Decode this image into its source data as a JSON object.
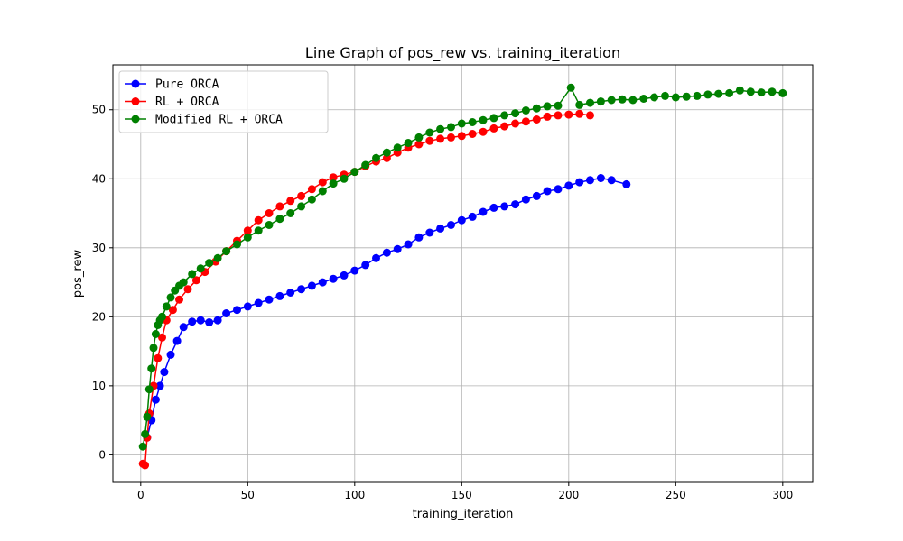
{
  "chart_data": {
    "type": "line",
    "title": "Line Graph of pos_rew vs. training_iteration",
    "xlabel": "training_iteration",
    "ylabel": "pos_rew",
    "xlim": [
      -13,
      314
    ],
    "ylim": [
      -4,
      56.5
    ],
    "xticks": [
      0,
      50,
      100,
      150,
      200,
      250,
      300
    ],
    "yticks": [
      0,
      10,
      20,
      30,
      40,
      50
    ],
    "grid": true,
    "legend_position": "top-left",
    "colors": {
      "Pure ORCA": "#0000ff",
      "RL + ORCA": "#ff0000",
      "Modified RL + ORCA": "#008000"
    },
    "series": [
      {
        "name": "Pure ORCA",
        "color": "#0000ff",
        "x": [
          3,
          5,
          7,
          9,
          11,
          14,
          17,
          20,
          24,
          28,
          32,
          36,
          40,
          45,
          50,
          55,
          60,
          65,
          70,
          75,
          80,
          85,
          90,
          95,
          100,
          105,
          110,
          115,
          120,
          125,
          130,
          135,
          140,
          145,
          150,
          155,
          160,
          165,
          170,
          175,
          180,
          185,
          190,
          195,
          200,
          205,
          210,
          215,
          220,
          227
        ],
        "y": [
          2.5,
          5,
          8,
          10,
          12,
          14.5,
          16.5,
          18.5,
          19.3,
          19.5,
          19.2,
          19.5,
          20.5,
          21,
          21.5,
          22,
          22.5,
          23,
          23.5,
          24,
          24.5,
          25,
          25.5,
          26,
          26.7,
          27.5,
          28.5,
          29.3,
          29.8,
          30.5,
          31.5,
          32.2,
          32.8,
          33.3,
          34,
          34.5,
          35.2,
          35.8,
          36,
          36.3,
          37,
          37.5,
          38.2,
          38.5,
          39,
          39.5,
          39.8,
          40.1,
          39.8,
          39.2
        ]
      },
      {
        "name": "RL + ORCA",
        "color": "#ff0000",
        "x": [
          1,
          2,
          3,
          4,
          6,
          8,
          10,
          12,
          15,
          18,
          22,
          26,
          30,
          35,
          40,
          45,
          50,
          55,
          60,
          65,
          70,
          75,
          80,
          85,
          90,
          95,
          100,
          105,
          110,
          115,
          120,
          125,
          130,
          135,
          140,
          145,
          150,
          155,
          160,
          165,
          170,
          175,
          180,
          185,
          190,
          195,
          200,
          205,
          210
        ],
        "y": [
          -1.3,
          -1.5,
          2.5,
          6,
          10,
          14,
          17,
          19.5,
          21,
          22.5,
          24,
          25.3,
          26.5,
          28,
          29.5,
          31,
          32.5,
          34,
          35,
          36,
          36.8,
          37.5,
          38.5,
          39.5,
          40.2,
          40.6,
          41,
          41.8,
          42.5,
          43,
          43.8,
          44.5,
          45,
          45.5,
          45.8,
          46,
          46.2,
          46.5,
          46.8,
          47.3,
          47.6,
          48,
          48.3,
          48.6,
          49,
          49.2,
          49.3,
          49.4,
          49.2
        ]
      },
      {
        "name": "Modified RL + ORCA",
        "color": "#008000",
        "x": [
          1,
          2,
          3,
          4,
          5,
          6,
          7,
          8,
          9,
          10,
          12,
          14,
          16,
          18,
          20,
          24,
          28,
          32,
          36,
          40,
          45,
          50,
          55,
          60,
          65,
          70,
          75,
          80,
          85,
          90,
          95,
          100,
          105,
          110,
          115,
          120,
          125,
          130,
          135,
          140,
          145,
          150,
          155,
          160,
          165,
          170,
          175,
          180,
          185,
          190,
          195,
          201,
          205,
          210,
          215,
          220,
          225,
          230,
          235,
          240,
          245,
          250,
          255,
          260,
          265,
          270,
          275,
          280,
          285,
          290,
          295,
          300
        ],
        "y": [
          1.2,
          3,
          5.5,
          9.5,
          12.5,
          15.5,
          17.5,
          18.8,
          19.5,
          20,
          21.5,
          22.8,
          23.8,
          24.5,
          25,
          26.2,
          27,
          27.8,
          28.5,
          29.5,
          30.5,
          31.5,
          32.5,
          33.3,
          34.2,
          35,
          36,
          37,
          38.2,
          39.3,
          40,
          41,
          42,
          43,
          43.8,
          44.5,
          45.2,
          46,
          46.7,
          47.2,
          47.5,
          48,
          48.2,
          48.5,
          48.8,
          49.2,
          49.5,
          49.9,
          50.2,
          50.5,
          50.6,
          53.2,
          50.7,
          51,
          51.2,
          51.4,
          51.5,
          51.4,
          51.6,
          51.8,
          52,
          51.8,
          51.9,
          52,
          52.2,
          52.3,
          52.4,
          52.8,
          52.6,
          52.5,
          52.6,
          52.4
        ]
      }
    ]
  }
}
